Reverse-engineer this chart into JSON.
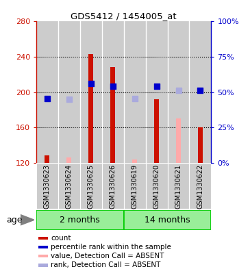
{
  "title": "GDS5412 / 1454005_at",
  "samples": [
    "GSM1330623",
    "GSM1330624",
    "GSM1330625",
    "GSM1330626",
    "GSM1330619",
    "GSM1330620",
    "GSM1330621",
    "GSM1330622"
  ],
  "group_labels": [
    "2 months",
    "14 months"
  ],
  "ylim": [
    120,
    280
  ],
  "yticks": [
    120,
    160,
    200,
    240,
    280
  ],
  "right_yticks": [
    0,
    25,
    50,
    75,
    100
  ],
  "bar_bottom": 120,
  "red_bars": [
    128,
    null,
    243,
    228,
    null,
    192,
    null,
    160
  ],
  "pink_bars": [
    null,
    126,
    null,
    null,
    124,
    null,
    170,
    null
  ],
  "blue_dots": [
    193,
    null,
    210,
    207,
    null,
    207,
    null,
    202
  ],
  "lavender_dots": [
    null,
    192,
    null,
    null,
    193,
    null,
    202,
    null
  ],
  "color_red_bar": "#cc1100",
  "color_pink_bar": "#ffaaaa",
  "color_blue_dot": "#0000cc",
  "color_lavender_dot": "#aaaadd",
  "color_grid_bg": "#cccccc",
  "color_group_green": "#99ee99",
  "color_group_border": "#00cc00",
  "legend_items": [
    {
      "label": "count",
      "color": "#cc1100"
    },
    {
      "label": "percentile rank within the sample",
      "color": "#0000cc"
    },
    {
      "label": "value, Detection Call = ABSENT",
      "color": "#ffaaaa"
    },
    {
      "label": "rank, Detection Call = ABSENT",
      "color": "#aaaadd"
    }
  ]
}
